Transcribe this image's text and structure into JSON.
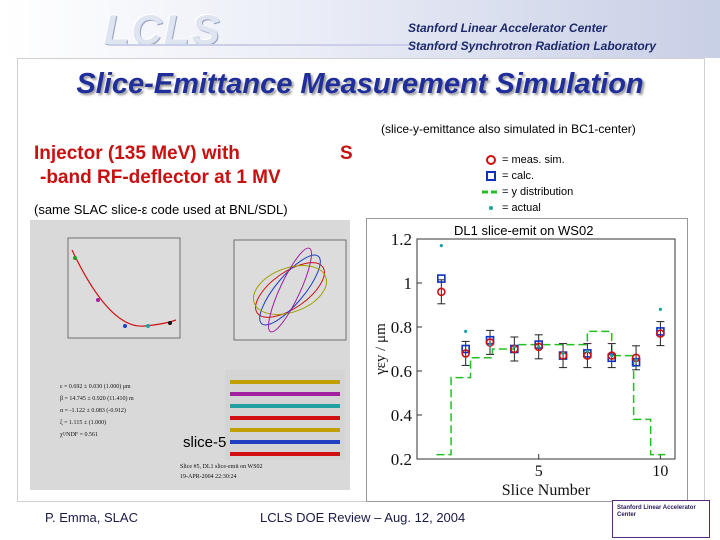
{
  "header": {
    "logo": "LCLS",
    "institution_line1": "Stanford Linear Accelerator Center",
    "institution_line2": "Stanford Synchrotron Radiation Laboratory"
  },
  "title": "Slice-Emittance Measurement Simulation",
  "note_top": "(slice-y-emittance also simulated in BC1-center)",
  "injector": {
    "line1": "Injector (135 MeV) with",
    "line1_s": "S",
    "line2": "-band RF-deflector at 1 MV"
  },
  "same_code": "(same SLAC slice-ε code used at BNL/SDL)",
  "legend": [
    {
      "label": "= meas. sim.",
      "symbol": "circle",
      "color": "#d01010"
    },
    {
      "label": "= calc.",
      "symbol": "square",
      "color": "#1030c0"
    },
    {
      "label": "= y distribution",
      "symbol": "dash",
      "color": "#22c020"
    },
    {
      "label": "= actual",
      "symbol": "dot",
      "color": "#20a0a0"
    }
  ],
  "chart_title": "DL1 slice-emit on WS02",
  "slice_label": "slice-5",
  "left_panel": {
    "text_lines": [
      "ε = 0.692 ± 0.030 (1.000) μm",
      "β = 14.745 ± 0.920 (11.410) m",
      "α = -1.122 ± 0.083 (-0.912)",
      "ξ = 1.115 ± (1.000)",
      "χ²/NDF = 0.561"
    ],
    "caption1": "Slice #5, DL1 slice-emit on WS02",
    "caption2": "19-APR-2004 22:30:24"
  },
  "chart_data": {
    "type": "scatter",
    "title": "DL1 slice-emit on WS02",
    "xlabel": "Slice Number",
    "ylabel": "γεy / μm",
    "xlim": [
      0,
      10.6
    ],
    "ylim": [
      0.2,
      1.2
    ],
    "xticks": [
      5,
      10
    ],
    "yticks": [
      0.2,
      0.4,
      0.6,
      0.8,
      1,
      1.2
    ],
    "x": [
      1,
      2,
      3,
      4,
      5,
      6,
      7,
      8,
      9,
      10
    ],
    "series": [
      {
        "name": "meas. sim.",
        "values": [
          0.96,
          0.68,
          0.73,
          0.7,
          0.71,
          0.67,
          0.67,
          0.67,
          0.66,
          0.77
        ]
      },
      {
        "name": "calc.",
        "values": [
          1.02,
          0.7,
          0.74,
          0.7,
          0.72,
          0.67,
          0.68,
          0.66,
          0.64,
          0.78
        ]
      },
      {
        "name": "actual",
        "values": [
          1.17,
          0.78,
          0.72,
          0.71,
          0.71,
          0.68,
          0.69,
          0.67,
          0.65,
          0.88
        ]
      }
    ],
    "y_distribution_steps": [
      [
        0.8,
        1.4,
        0.22
      ],
      [
        1.4,
        2.2,
        0.57
      ],
      [
        2.2,
        3.1,
        0.66
      ],
      [
        3.1,
        4.0,
        0.7
      ],
      [
        4.0,
        7.0,
        0.72
      ],
      [
        7.0,
        8.0,
        0.78
      ],
      [
        8.0,
        8.9,
        0.67
      ],
      [
        8.9,
        9.6,
        0.38
      ],
      [
        9.6,
        10.2,
        0.22
      ]
    ],
    "grid": false
  },
  "footer": {
    "left": "P. Emma, SLAC",
    "center": "LCLS DOE Review – Aug. 12, 2004",
    "right_logo": "Stanford Linear Accelerator Center"
  }
}
